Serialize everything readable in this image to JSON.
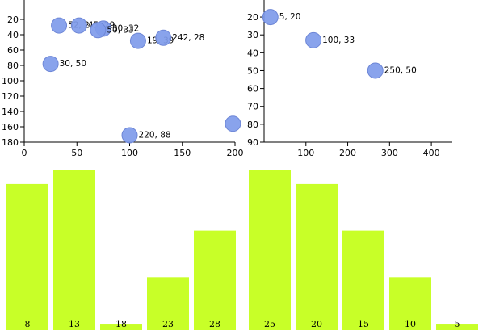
{
  "colors": {
    "point_fill": "#7f9bea",
    "point_stroke": "#6d86d6",
    "bar_fill": "#c8ff28",
    "axis": "#000000"
  },
  "chart_data": [
    {
      "type": "scatter",
      "title": "",
      "xlabel": "",
      "ylabel": "",
      "xlim": [
        0,
        200
      ],
      "ylim": [
        180,
        0
      ],
      "y_inverted": true,
      "x_ticks": [
        0,
        50,
        100,
        150,
        200
      ],
      "y_ticks": [
        20,
        40,
        60,
        80,
        100,
        120,
        140,
        160,
        180
      ],
      "points": [
        {
          "x": 33,
          "y": 28,
          "label": "52, 2"
        },
        {
          "x": 52,
          "y": 28,
          "label": "45, 29"
        },
        {
          "x": 75,
          "y": 32,
          "label": "30, 32"
        },
        {
          "x": 70,
          "y": 34,
          "label": "50, 33"
        },
        {
          "x": 108,
          "y": 48,
          "label": "19, 39"
        },
        {
          "x": 132,
          "y": 44,
          "label": "242, 28"
        },
        {
          "x": 25,
          "y": 78,
          "label": "30, 50"
        },
        {
          "x": 100,
          "y": 171,
          "label": "220, 88"
        },
        {
          "x": 198,
          "y": 156,
          "label": ""
        }
      ]
    },
    {
      "type": "scatter",
      "title": "",
      "xlabel": "",
      "ylabel": "",
      "xlim": [
        0,
        450
      ],
      "ylim": [
        90,
        15
      ],
      "y_inverted": true,
      "x_ticks": [
        100,
        200,
        300,
        400
      ],
      "y_ticks": [
        20,
        30,
        40,
        50,
        60,
        70,
        80,
        90
      ],
      "points": [
        {
          "x": 15,
          "y": 20,
          "label": "5, 20"
        },
        {
          "x": 118,
          "y": 33,
          "label": "100, 33"
        },
        {
          "x": 266,
          "y": 50,
          "label": "250, 50"
        }
      ]
    },
    {
      "type": "bar",
      "title": "",
      "ymax": 100,
      "categories": [
        "8",
        "13",
        "18",
        "23",
        "28"
      ],
      "values": [
        91,
        100,
        4,
        33,
        62
      ]
    },
    {
      "type": "bar",
      "title": "",
      "ymax": 100,
      "categories": [
        "25",
        "20",
        "15",
        "10",
        "5"
      ],
      "values": [
        100,
        91,
        62,
        33,
        4
      ]
    }
  ]
}
